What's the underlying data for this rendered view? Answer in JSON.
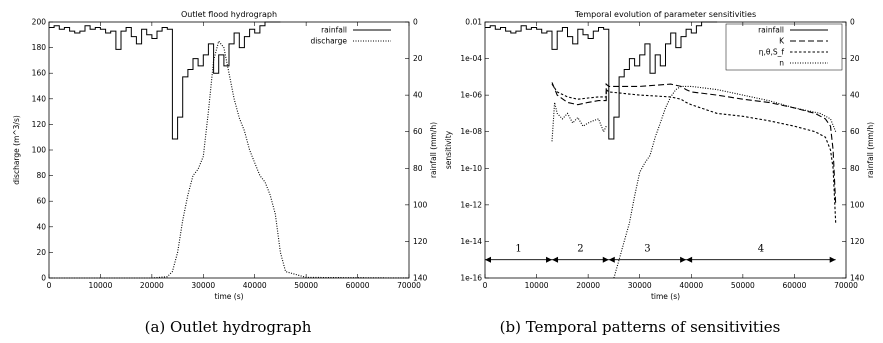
{
  "captions": [
    "(a) Outlet hydrograph",
    "(b) Temporal patterns of sensitivities"
  ],
  "chart_data": [
    {
      "type": "line",
      "title": "Outlet flood hydrograph",
      "xlabel": "time (s)",
      "ylabel": "discharge (m^3/s)",
      "y2label": "rainfall (mm/h)",
      "xlim": [
        0,
        70000
      ],
      "ylim": [
        0,
        200
      ],
      "y2lim": [
        140,
        0
      ],
      "x_ticks": [
        0,
        10000,
        20000,
        30000,
        40000,
        50000,
        60000,
        70000
      ],
      "y_ticks": [
        0,
        20,
        40,
        60,
        80,
        100,
        120,
        140,
        160,
        180,
        200
      ],
      "y2_ticks": [
        0,
        20,
        40,
        60,
        80,
        100,
        120,
        140
      ],
      "legend_position": "top-right",
      "series": [
        {
          "name": "rainfall",
          "axis": "y2",
          "style": "solid",
          "step": true,
          "x": [
            0,
            1000,
            2000,
            3000,
            4000,
            5000,
            6000,
            7000,
            8000,
            9000,
            10000,
            11000,
            12000,
            13000,
            14000,
            15000,
            16000,
            17000,
            18000,
            19000,
            20000,
            21000,
            22000,
            23000,
            24000,
            25000,
            26000,
            27000,
            28000,
            29000,
            30000,
            31000,
            32000,
            33000,
            34000,
            35000,
            36000,
            37000,
            38000,
            39000,
            40000,
            41000,
            42000,
            43000,
            44000
          ],
          "y": [
            3,
            2,
            4,
            3,
            5,
            6,
            5,
            2,
            4,
            3,
            4,
            6,
            5,
            15,
            5,
            3,
            8,
            12,
            4,
            7,
            9,
            5,
            3,
            4,
            64,
            52,
            30,
            26,
            20,
            24,
            18,
            12,
            28,
            18,
            24,
            12,
            6,
            14,
            8,
            4,
            6,
            2,
            0,
            0,
            0
          ]
        },
        {
          "name": "discharge",
          "axis": "y",
          "style": "dotted",
          "x": [
            0,
            20000,
            23000,
            24000,
            25000,
            26000,
            27000,
            28000,
            29000,
            30000,
            31000,
            32000,
            33000,
            34000,
            35000,
            36000,
            37000,
            38000,
            39000,
            40000,
            41000,
            42000,
            43000,
            44000,
            45000,
            46000,
            50000,
            70000
          ],
          "y": [
            0,
            0,
            1,
            5,
            20,
            45,
            65,
            80,
            85,
            95,
            130,
            170,
            185,
            180,
            160,
            140,
            125,
            115,
            100,
            90,
            80,
            75,
            65,
            50,
            20,
            5,
            0.5,
            0
          ]
        }
      ]
    },
    {
      "type": "line",
      "title": "Temporal evolution of parameter sensitivities",
      "xlabel": "time (s)",
      "ylabel": "sensitivity",
      "y2label": "rainfall (mm/h)",
      "yscale": "log",
      "xlim": [
        0,
        70000
      ],
      "ylim": [
        1e-16,
        0.01
      ],
      "y2lim": [
        140,
        0
      ],
      "x_ticks": [
        0,
        10000,
        20000,
        30000,
        40000,
        50000,
        60000,
        70000
      ],
      "y_ticks": [
        "1e-16",
        "1e-14",
        "1e-12",
        "1e-10",
        "1e-08",
        "1e-06",
        "1e-04",
        "0.01"
      ],
      "y2_ticks": [
        0,
        20,
        40,
        60,
        80,
        100,
        120,
        140
      ],
      "legend_position": "top-right",
      "segments": [
        {
          "label": "1",
          "x_from": 0,
          "x_to": 13000
        },
        {
          "label": "2",
          "x_from": 13000,
          "x_to": 24000
        },
        {
          "label": "3",
          "x_from": 24000,
          "x_to": 39000
        },
        {
          "label": "4",
          "x_from": 39000,
          "x_to": 68000
        }
      ],
      "series": [
        {
          "name": "rainfall",
          "axis": "y2",
          "style": "solid",
          "step": true,
          "x": [
            0,
            1000,
            2000,
            3000,
            4000,
            5000,
            6000,
            7000,
            8000,
            9000,
            10000,
            11000,
            12000,
            13000,
            14000,
            15000,
            16000,
            17000,
            18000,
            19000,
            20000,
            21000,
            22000,
            23000,
            24000,
            25000,
            26000,
            27000,
            28000,
            29000,
            30000,
            31000,
            32000,
            33000,
            34000,
            35000,
            36000,
            37000,
            38000,
            39000,
            40000,
            41000,
            42000,
            43000,
            44000
          ],
          "y": [
            3,
            2,
            4,
            3,
            5,
            6,
            5,
            2,
            4,
            3,
            4,
            6,
            5,
            15,
            5,
            3,
            8,
            12,
            4,
            7,
            9,
            5,
            3,
            4,
            64,
            52,
            30,
            26,
            20,
            24,
            18,
            12,
            28,
            18,
            24,
            12,
            6,
            14,
            8,
            4,
            6,
            2,
            0,
            0,
            0
          ]
        },
        {
          "name": "K",
          "axis": "y",
          "style": "dashed",
          "x": [
            13000,
            14000,
            16000,
            18000,
            20000,
            22000,
            23500,
            23500,
            24000,
            30000,
            36000,
            38000,
            39000,
            40000,
            45000,
            50000,
            55000,
            60000,
            64000,
            66000,
            67000,
            67500,
            68000
          ],
          "y": [
            5e-06,
            1e-06,
            4e-07,
            3e-07,
            4e-07,
            5e-07,
            5e-07,
            4e-06,
            3e-06,
            3e-06,
            4e-06,
            3e-06,
            2e-06,
            1.5e-06,
            1e-06,
            6e-07,
            4e-07,
            2e-07,
            1e-07,
            5e-08,
            2e-08,
            1e-09,
            1e-12
          ]
        },
        {
          "name": "η,θ,S_f",
          "axis": "y",
          "style": "short-dashed",
          "x": [
            13000,
            14000,
            16000,
            18000,
            20000,
            22000,
            23500,
            23500,
            24000,
            30000,
            36000,
            38000,
            39000,
            40000,
            45000,
            50000,
            55000,
            60000,
            64000,
            66000,
            67000,
            67500,
            68000
          ],
          "y": [
            4e-06,
            1.5e-06,
            8e-07,
            6e-07,
            7e-07,
            8e-07,
            8e-07,
            2e-06,
            1.5e-06,
            1e-06,
            8e-07,
            6e-07,
            4e-07,
            3e-07,
            1e-07,
            7e-08,
            4e-08,
            2e-08,
            1e-08,
            5e-09,
            1e-09,
            1e-10,
            1e-13
          ]
        },
        {
          "name": "n",
          "axis": "y",
          "style": "dotted",
          "x": [
            13000,
            13500,
            14000,
            15000,
            16000,
            17000,
            18000,
            19000,
            20000,
            21000,
            22000,
            23000,
            23500,
            23500,
            25000,
            26000,
            27000,
            28000,
            29000,
            30000,
            31000,
            32000,
            33000,
            34000,
            35000,
            36000,
            37000,
            38000,
            39000,
            40000,
            45000,
            50000,
            55000,
            60000,
            65000,
            67000,
            68000
          ],
          "y": [
            3e-09,
            4e-07,
            1e-07,
            5e-08,
            1e-07,
            3e-08,
            6e-08,
            2e-08,
            3e-08,
            4e-08,
            5e-08,
            1e-08,
            2e-08,
            null,
            1e-16,
            1e-15,
            1e-14,
            1e-13,
            3e-12,
            6e-11,
            2e-10,
            5e-10,
            5e-09,
            3e-08,
            2e-07,
            8e-07,
            2e-06,
            3e-06,
            3e-06,
            3e-06,
            2e-06,
            1e-06,
            5e-07,
            2e-07,
            1e-07,
            5e-08,
            1e-08
          ]
        }
      ]
    }
  ],
  "colors": {
    "ink": "#000000",
    "background": "#ffffff"
  }
}
